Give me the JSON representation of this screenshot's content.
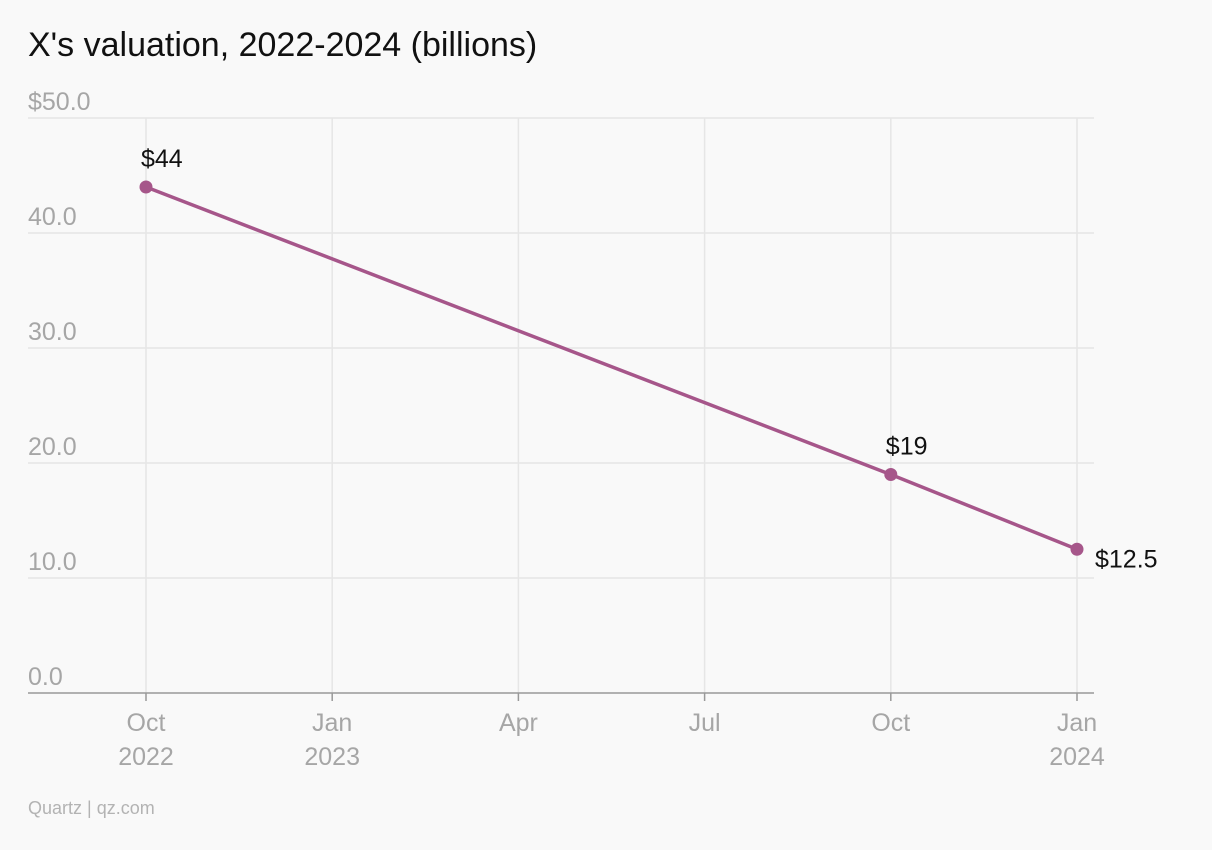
{
  "chart_data": {
    "type": "line",
    "title": "X's valuation, 2022-2024 (billions)",
    "xlabel": "",
    "ylabel": "",
    "ylim": [
      0,
      50
    ],
    "yticks": [
      {
        "value": 0,
        "label": "0.0"
      },
      {
        "value": 10,
        "label": "10.0"
      },
      {
        "value": 20,
        "label": "20.0"
      },
      {
        "value": 30,
        "label": "30.0"
      },
      {
        "value": 40,
        "label": "40.0"
      },
      {
        "value": 50,
        "label": "$50.0"
      }
    ],
    "xrange": [
      "2022-10",
      "2024-01"
    ],
    "xticks": [
      {
        "date": "2022-10",
        "month": "Oct",
        "year": "2022"
      },
      {
        "date": "2023-01",
        "month": "Jan",
        "year": "2023"
      },
      {
        "date": "2023-04",
        "month": "Apr",
        "year": ""
      },
      {
        "date": "2023-07",
        "month": "Jul",
        "year": ""
      },
      {
        "date": "2023-10",
        "month": "Oct",
        "year": ""
      },
      {
        "date": "2024-01",
        "month": "Jan",
        "year": "2024"
      }
    ],
    "grid": true,
    "series": [
      {
        "color": "#a6568a",
        "points": [
          {
            "date": "2022-10",
            "value": 44,
            "label": "$44"
          },
          {
            "date": "2023-10",
            "value": 19,
            "label": "$19"
          },
          {
            "date": "2024-01",
            "value": 12.5,
            "label": "$12.5"
          }
        ]
      }
    ]
  },
  "footer": {
    "source": "Quartz | qz.com"
  },
  "colors": {
    "background": "#f9f9f9",
    "line": "#a6568a",
    "grid": "#e6e6e6",
    "axis": "#999999",
    "tick_text": "#a6a6a6",
    "label_text": "#111111"
  }
}
